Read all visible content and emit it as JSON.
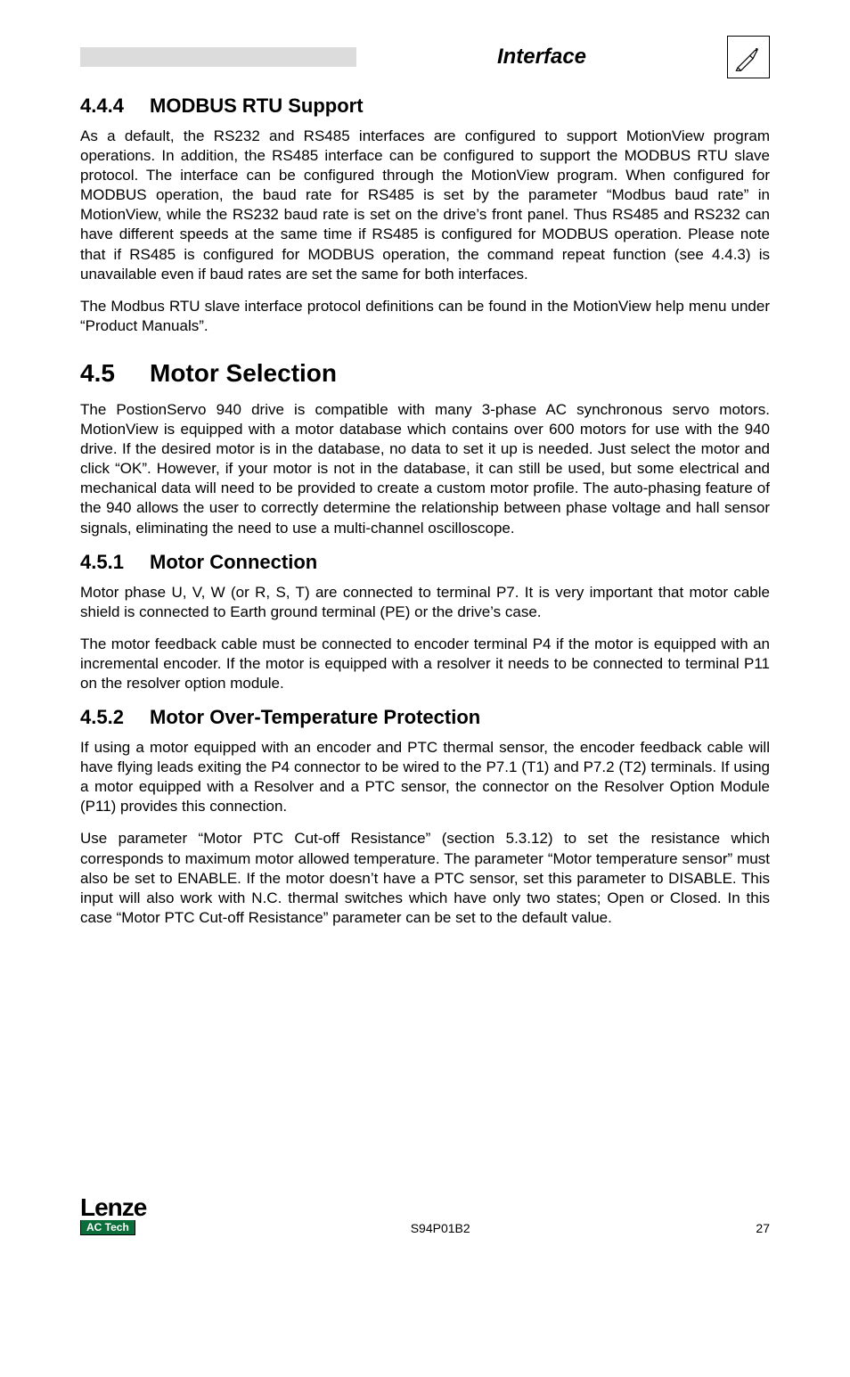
{
  "header": {
    "title": "Interface"
  },
  "sections": [
    {
      "num": "4.4.4",
      "title": "MODBUS RTU Support",
      "level": "sec",
      "paras": [
        "As a default, the RS232 and RS485 interfaces are configured to support MotionView program operations. In addition, the RS485 interface can be configured to support the MODBUS RTU slave protocol. The interface can be configured through the MotionView program. When configured for MODBUS operation, the baud rate for RS485 is set by the parameter “Modbus baud rate” in MotionView, while the RS232 baud rate is set on the drive’s front panel. Thus RS485 and RS232 can have different speeds at the same time if RS485 is configured for MODBUS operation. Please note that if RS485 is configured for MODBUS operation, the command repeat function (see 4.4.3) is unavailable even if baud rates are set the same for both interfaces.",
        "The Modbus RTU slave interface protocol definitions can be found in the MotionView help menu under “Product Manuals”."
      ]
    },
    {
      "num": "4.5",
      "title": "Motor Selection",
      "level": "chap",
      "paras": [
        "The PostionServo 940 drive is compatible with many 3-phase AC synchronous servo motors. MotionView is equipped with a motor database which contains over 600 motors for use with the 940 drive. If the desired motor is in the database, no data to set it up is needed. Just select the motor and click “OK”. However, if your motor is not in the database, it can still be used, but some electrical and mechanical data will need to be provided to create a custom motor profile. The auto-phasing feature of the 940 allows the user to correctly determine the relationship between phase voltage and hall sensor signals, eliminating the need to use a multi-channel oscilloscope."
      ]
    },
    {
      "num": "4.5.1",
      "title": "Motor Connection",
      "level": "sec",
      "paras": [
        "Motor phase U, V, W (or R, S, T) are connected to terminal P7. It is very important that motor cable shield is connected to Earth ground terminal (PE) or the drive’s case.",
        "The motor feedback cable must be connected to encoder terminal P4 if the motor is equipped with an incremental encoder. If the motor is equipped with a resolver it needs to be connected to terminal P11 on the resolver option module."
      ]
    },
    {
      "num": "4.5.2",
      "title": "Motor Over-Temperature Protection",
      "level": "sec",
      "paras": [
        "If using a motor equipped with an encoder and PTC thermal sensor, the encoder feedback cable will have flying leads exiting the P4 connector to be wired to the P7.1 (T1) and P7.2 (T2) terminals. If using a motor equipped with a Resolver and a PTC sensor, the connector on the Resolver Option Module (P11) provides this connection.",
        "Use parameter “Motor PTC Cut-off Resistance” (section 5.3.12) to set the resistance which corresponds to maximum motor allowed temperature. The parameter “Motor temperature sensor” must also be set to ENABLE. If the motor doesn’t have a PTC sensor, set this parameter to DISABLE. This input will also work with N.C. thermal switches which have only two states; Open or Closed. In this case “Motor PTC Cut-off Resistance” parameter can be set to the default value."
      ]
    }
  ],
  "footer": {
    "logo_main": "Lenze",
    "logo_sub": "AC Tech",
    "doc_code": "S94P01B2",
    "page_number": "27"
  }
}
